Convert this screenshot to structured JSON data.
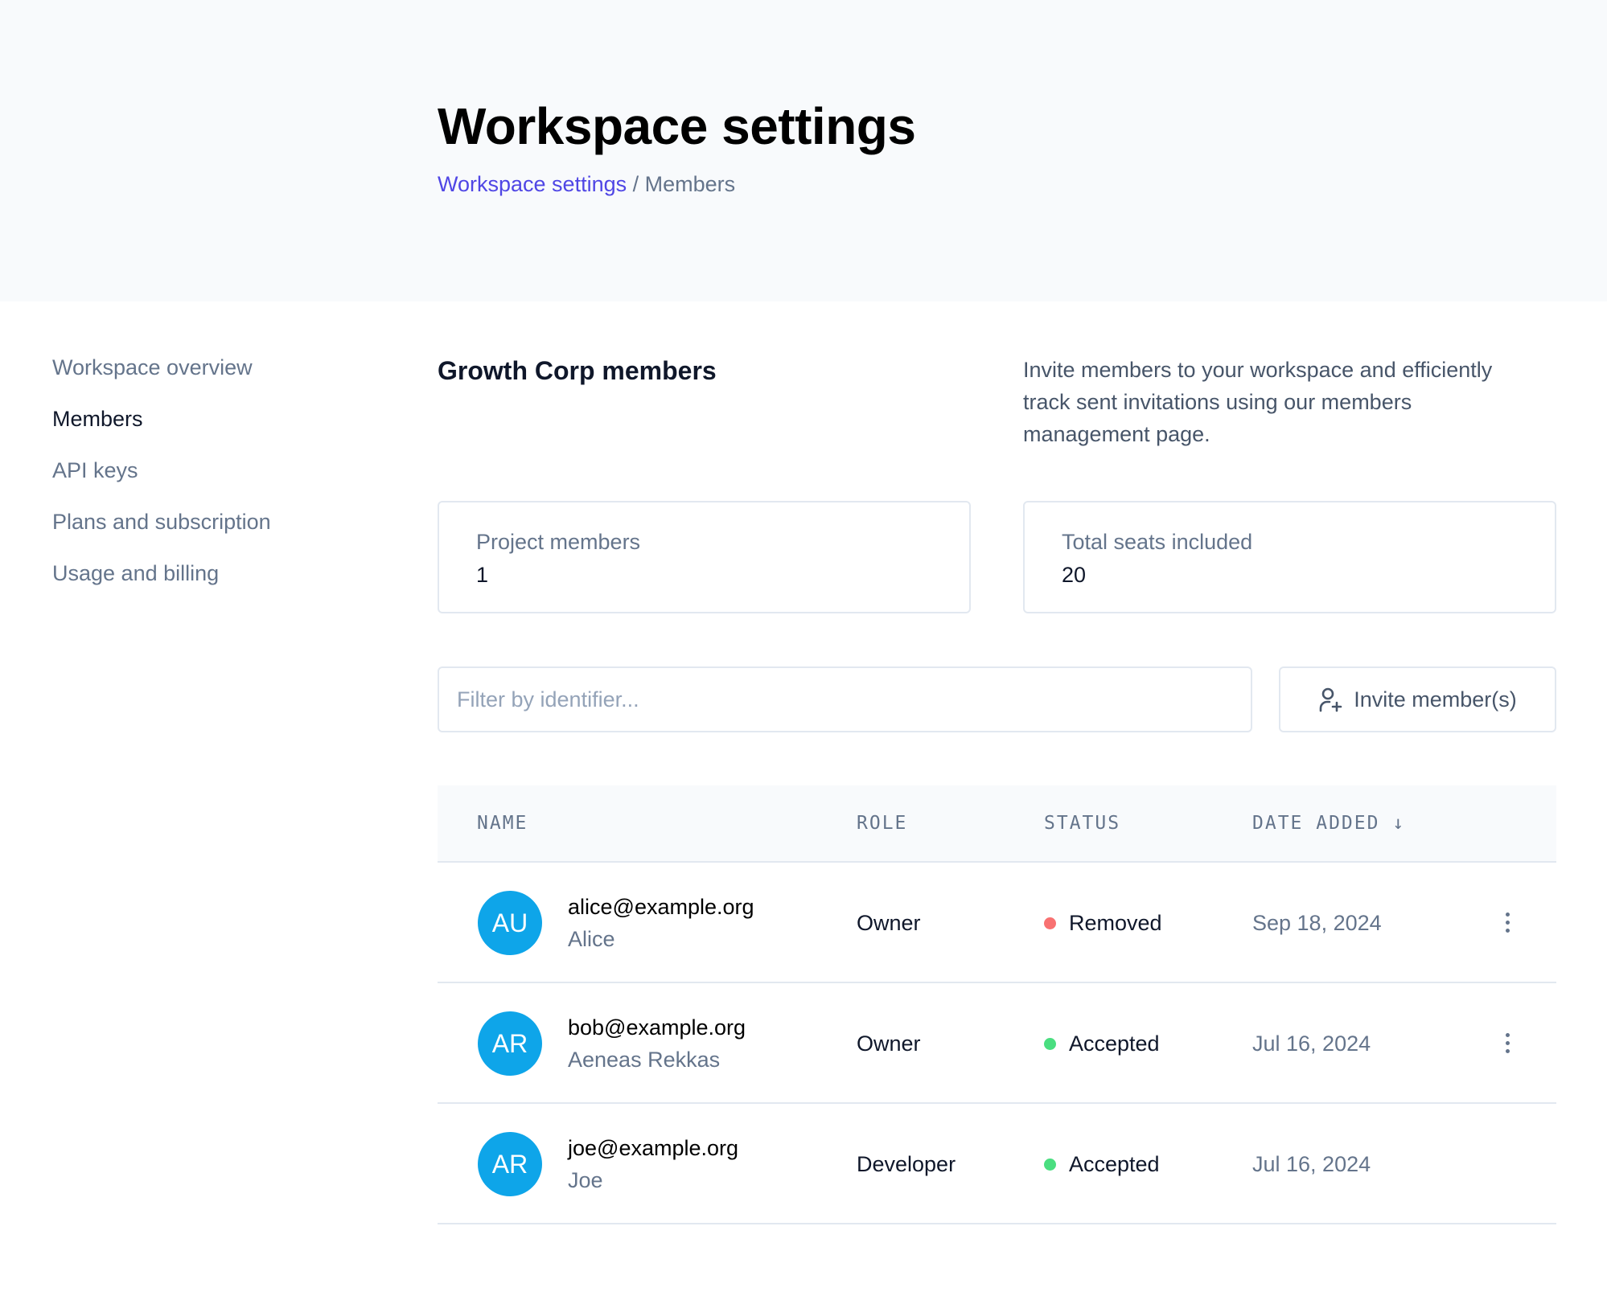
{
  "header": {
    "title": "Workspace settings",
    "breadcrumb": {
      "parent": "Workspace settings",
      "separator": "/",
      "current": "Members"
    }
  },
  "sidebar": {
    "items": [
      {
        "label": "Workspace overview"
      },
      {
        "label": "Members",
        "active": true
      },
      {
        "label": "API keys"
      },
      {
        "label": "Plans and subscription"
      },
      {
        "label": "Usage and billing"
      }
    ]
  },
  "main": {
    "section_title": "Growth Corp members",
    "description": "Invite members to your workspace and efficiently track sent invitations using our members management page.",
    "stats": [
      {
        "label": "Project members",
        "value": "1"
      },
      {
        "label": "Total seats included",
        "value": "20"
      }
    ],
    "filter": {
      "placeholder": "Filter by identifier...",
      "value": ""
    },
    "invite_label": "Invite member(s)",
    "table": {
      "columns": [
        "NAME",
        "ROLE",
        "STATUS",
        "DATE ADDED"
      ],
      "sort_indicator": "↓",
      "rows": [
        {
          "initials": "AU",
          "email": "alice@example.org",
          "name": "Alice",
          "role": "Owner",
          "status": "Removed",
          "status_color": "#f87171",
          "date": "Sep 18, 2024",
          "menu": true
        },
        {
          "initials": "AR",
          "email": "bob@example.org",
          "name": "Aeneas Rekkas",
          "role": "Owner",
          "status": "Accepted",
          "status_color": "#4ade80",
          "date": "Jul 16, 2024",
          "menu": true
        },
        {
          "initials": "AR",
          "email": "joe@example.org",
          "name": "Joe",
          "role": "Developer",
          "status": "Accepted",
          "status_color": "#4ade80",
          "date": "Jul 16, 2024",
          "menu": false
        }
      ]
    }
  },
  "colors": {
    "accent": "#4f46e5",
    "avatar": "#0ea5e9"
  }
}
